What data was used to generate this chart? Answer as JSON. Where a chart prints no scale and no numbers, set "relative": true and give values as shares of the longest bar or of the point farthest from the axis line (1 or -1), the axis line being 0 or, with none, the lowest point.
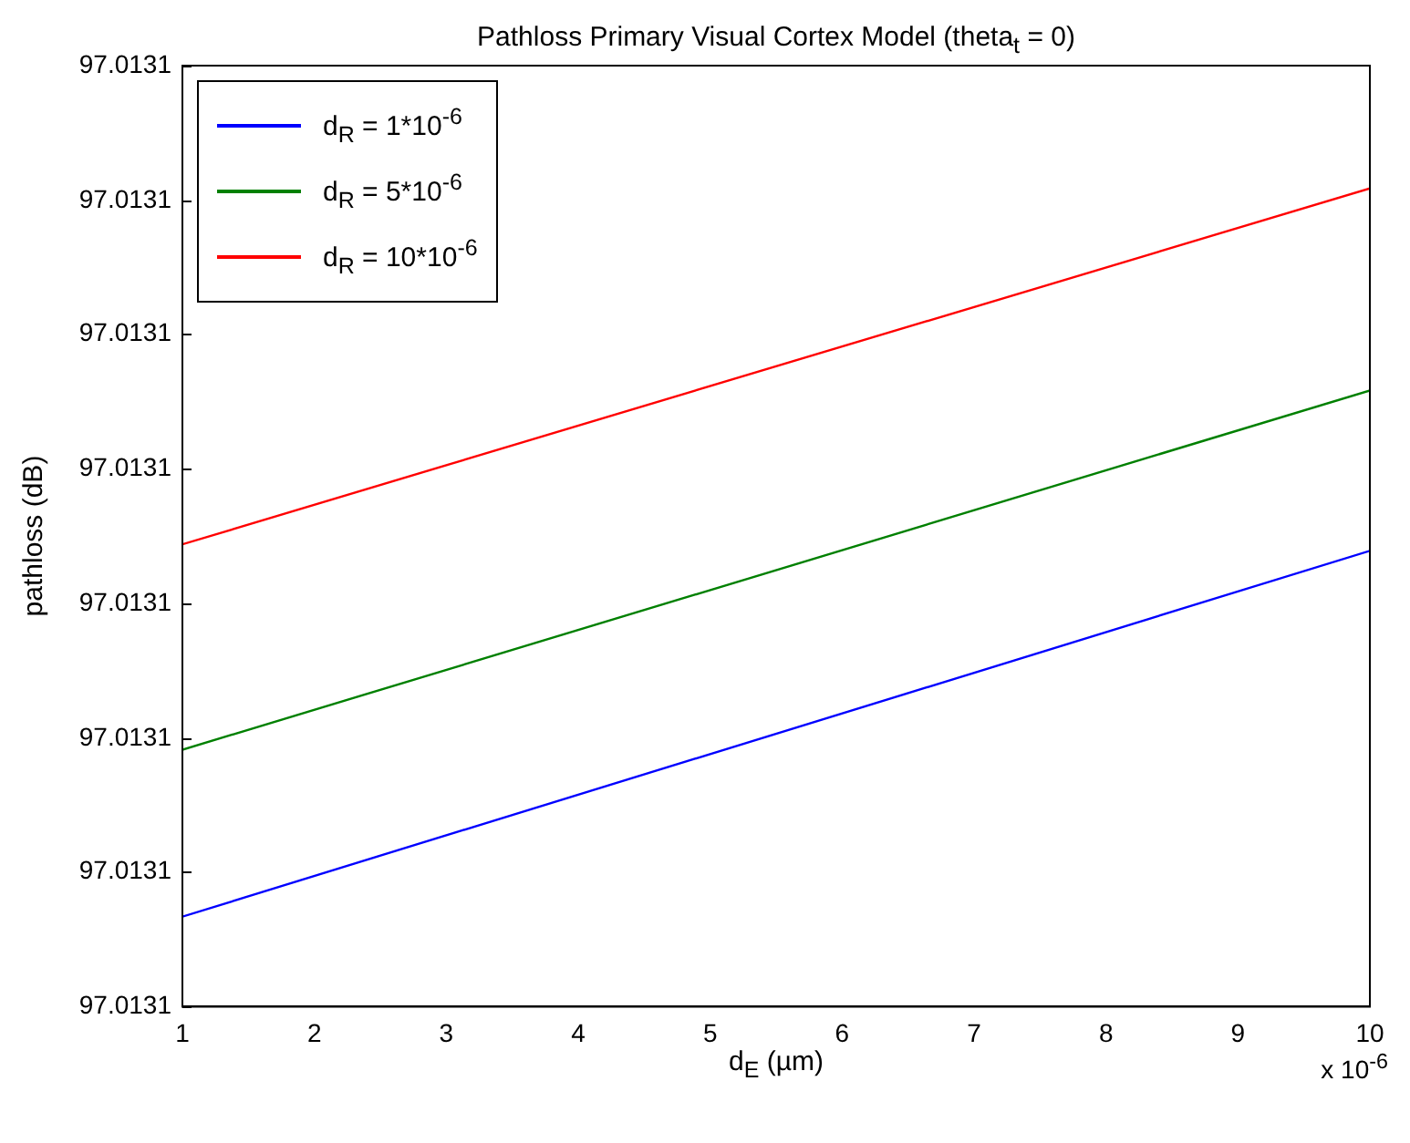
{
  "chart_data": {
    "type": "line",
    "title": "Pathloss Primary Visual Cortex Model (theta$_{t}$ = 0)",
    "xlabel": "d$_{E}$ (µm)",
    "ylabel": "pathloss (dB)",
    "relative": true,
    "x": [
      1,
      10
    ],
    "xlim": [
      1,
      10
    ],
    "xticks": [
      1,
      2,
      3,
      4,
      5,
      6,
      7,
      8,
      9,
      10
    ],
    "series": [
      {
        "name": "d$_{R}$ = 1*10$^{-6}$",
        "color": "#0000ff",
        "values": [
          0.11,
          0.557
        ]
      },
      {
        "name": "d$_{R}$ = 5*10$^{-6}$",
        "color": "#008000",
        "values": [
          0.314,
          0.753
        ]
      },
      {
        "name": "d$_{R}$ = 10*10$^{-6}$",
        "color": "#ff0000",
        "values": [
          0.565,
          1
        ]
      }
    ],
    "legend": "top left",
    "grid": false,
    "marker": "none",
    "line_style": "solid",
    "annotations": [
      "x 10$^{-6}$",
      "97.0131",
      "97.0131",
      "97.0131",
      "97.0131",
      "97.0131",
      "97.0131",
      "97.0131",
      "97.0131"
    ]
  }
}
